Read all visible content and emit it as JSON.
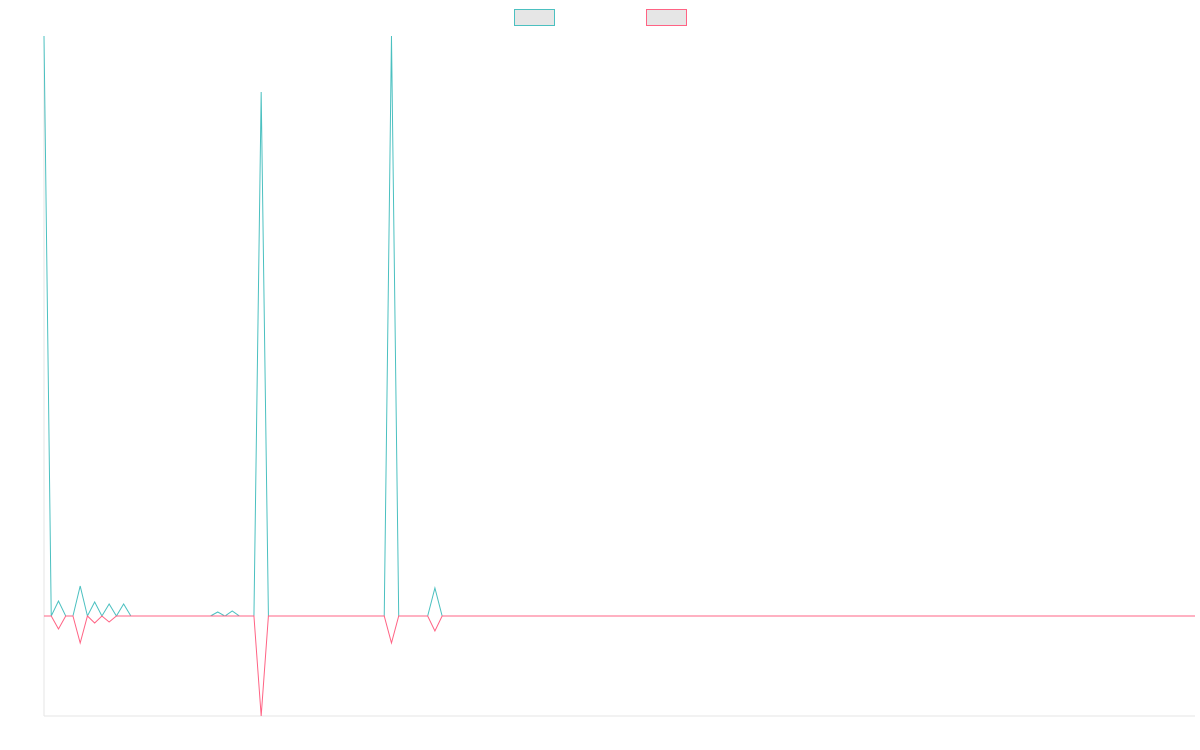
{
  "chart_data": {
    "type": "line",
    "title": "",
    "xlabel": "",
    "ylabel": "",
    "grid": false,
    "legend_position": "top-center",
    "x_count": 160,
    "ylim": [
      -10,
      58
    ],
    "series": [
      {
        "name": "",
        "color": "#4bc0c0",
        "fill": "#e6e6e6",
        "values": [
          58,
          0,
          1.5,
          0,
          0,
          3,
          0,
          1.4,
          0,
          1.2,
          0,
          1.2,
          0,
          0,
          0,
          0,
          0,
          0,
          0,
          0,
          0,
          0,
          0,
          0,
          0.4,
          0,
          0.5,
          0,
          0,
          0,
          52.4,
          0,
          0,
          0,
          0,
          0,
          0,
          0,
          0,
          0,
          0,
          0,
          0,
          0,
          0,
          0,
          0,
          0,
          58,
          0,
          0,
          0,
          0,
          0,
          2.8,
          0,
          0,
          0,
          0,
          0,
          0,
          0,
          0,
          0,
          0,
          0,
          0,
          0,
          0,
          0,
          0,
          0,
          0,
          0,
          0,
          0,
          0,
          0,
          0,
          0,
          0,
          0,
          0,
          0,
          0,
          0,
          0,
          0,
          0,
          0,
          0,
          0,
          0,
          0,
          0,
          0,
          0,
          0,
          0,
          0,
          0,
          0,
          0,
          0,
          0,
          0,
          0,
          0,
          0,
          0,
          0,
          0,
          0,
          0,
          0,
          0,
          0,
          0,
          0,
          0,
          0,
          0,
          0,
          0,
          0,
          0,
          0,
          0,
          0,
          0,
          0,
          0,
          0,
          0,
          0,
          0,
          0,
          0,
          0,
          0,
          0,
          0,
          0,
          0,
          0,
          0,
          0,
          0,
          0,
          0,
          0,
          0,
          0,
          0,
          0,
          0,
          0,
          0
        ]
      },
      {
        "name": "",
        "color": "#ff6384",
        "fill": "#e6e6e6",
        "values": [
          0,
          0,
          -1.3,
          0,
          0,
          -2.7,
          0,
          -0.7,
          0,
          -0.6,
          0,
          0,
          0,
          0,
          0,
          0,
          0,
          0,
          0,
          0,
          0,
          0,
          0,
          0,
          0,
          0,
          0,
          0,
          0,
          0,
          -10,
          0,
          0,
          0,
          0,
          0,
          0,
          0,
          0,
          0,
          0,
          0,
          0,
          0,
          0,
          0,
          0,
          0,
          -2.7,
          0,
          0,
          0,
          0,
          0,
          -1.5,
          0,
          0,
          0,
          0,
          0,
          0,
          0,
          0,
          0,
          0,
          0,
          0,
          0,
          0,
          0,
          0,
          0,
          0,
          0,
          0,
          0,
          0,
          0,
          0,
          0,
          0,
          0,
          0,
          0,
          0,
          0,
          0,
          0,
          0,
          0,
          0,
          0,
          0,
          0,
          0,
          0,
          0,
          0,
          0,
          0,
          0,
          0,
          0,
          0,
          0,
          0,
          0,
          0,
          0,
          0,
          0,
          0,
          0,
          0,
          0,
          0,
          0,
          0,
          0,
          0,
          0,
          0,
          0,
          0,
          0,
          0,
          0,
          0,
          0,
          0,
          0,
          0,
          0,
          0,
          0,
          0,
          0,
          0,
          0,
          0,
          0,
          0,
          0,
          0,
          0,
          0,
          0,
          0,
          0,
          0,
          0,
          0,
          0,
          0,
          0,
          0,
          0,
          0,
          0,
          0
        ]
      }
    ]
  }
}
